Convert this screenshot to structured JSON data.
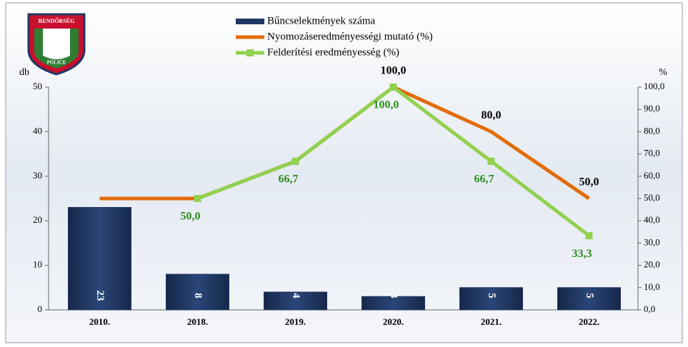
{
  "chart_data": {
    "type": "bar",
    "logo": {
      "top": "RENDŐRSÉG",
      "bottom": "POLICE"
    },
    "ylabel": "db",
    "y2label": "%",
    "categories": [
      "2010.",
      "2018.",
      "2019.",
      "2020.",
      "2021.",
      "2022."
    ],
    "series": [
      {
        "name": "Bűncselekmények száma",
        "type": "bar",
        "color": "#1f3864",
        "values": [
          23,
          8,
          4,
          3,
          5,
          5
        ]
      },
      {
        "name": "Nyomozáseredményességi mutató (%)",
        "type": "line",
        "axis": "y2",
        "color": "#e36c0a",
        "values": [
          50,
          50,
          66.7,
          100,
          80,
          50
        ],
        "value_labels": [
          null,
          null,
          null,
          "100,0",
          "80,0",
          "50,0"
        ]
      },
      {
        "name": "Felderítési eredményesség (%)",
        "type": "line",
        "axis": "y2",
        "color": "#92d050",
        "marker": "square",
        "values": [
          null,
          50,
          66.7,
          100,
          66.7,
          33.3
        ],
        "value_labels": [
          null,
          "50,0",
          "66,7",
          "100,0",
          "66,7",
          "33,3"
        ]
      }
    ],
    "ylim": [
      0,
      50
    ],
    "yticks": [
      0,
      10,
      20,
      30,
      40,
      50
    ],
    "y2lim": [
      0,
      100
    ],
    "y2ticks": [
      {
        "value": 0,
        "label": "0,0"
      },
      {
        "value": 10,
        "label": "10,0"
      },
      {
        "value": 20,
        "label": "20,0"
      },
      {
        "value": 30,
        "label": "30,0"
      },
      {
        "value": 40,
        "label": "40,0"
      },
      {
        "value": 50,
        "label": "50,0"
      },
      {
        "value": 60,
        "label": "60,0"
      },
      {
        "value": 70,
        "label": "70,0"
      },
      {
        "value": 80,
        "label": "80,0"
      },
      {
        "value": 90,
        "label": "90,0"
      },
      {
        "value": 100,
        "label": "100,0"
      }
    ]
  }
}
